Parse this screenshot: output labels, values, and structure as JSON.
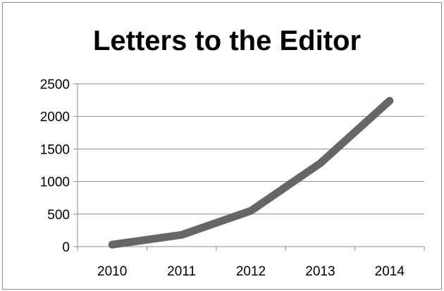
{
  "chart_data": {
    "type": "line",
    "title": "Letters to the Editor",
    "xlabel": "",
    "ylabel": "",
    "categories": [
      "2010",
      "2011",
      "2012",
      "2013",
      "2014"
    ],
    "series": [
      {
        "values": [
          30,
          180,
          550,
          1280,
          2240
        ]
      }
    ],
    "ylim": [
      0,
      2500
    ],
    "yticks": [
      0,
      500,
      1000,
      1500,
      2000,
      2500
    ],
    "grid": true,
    "legend": "none",
    "colors": {
      "line": "#666666",
      "grid": "#8c8c8c",
      "axis": "#8c8c8c"
    }
  }
}
